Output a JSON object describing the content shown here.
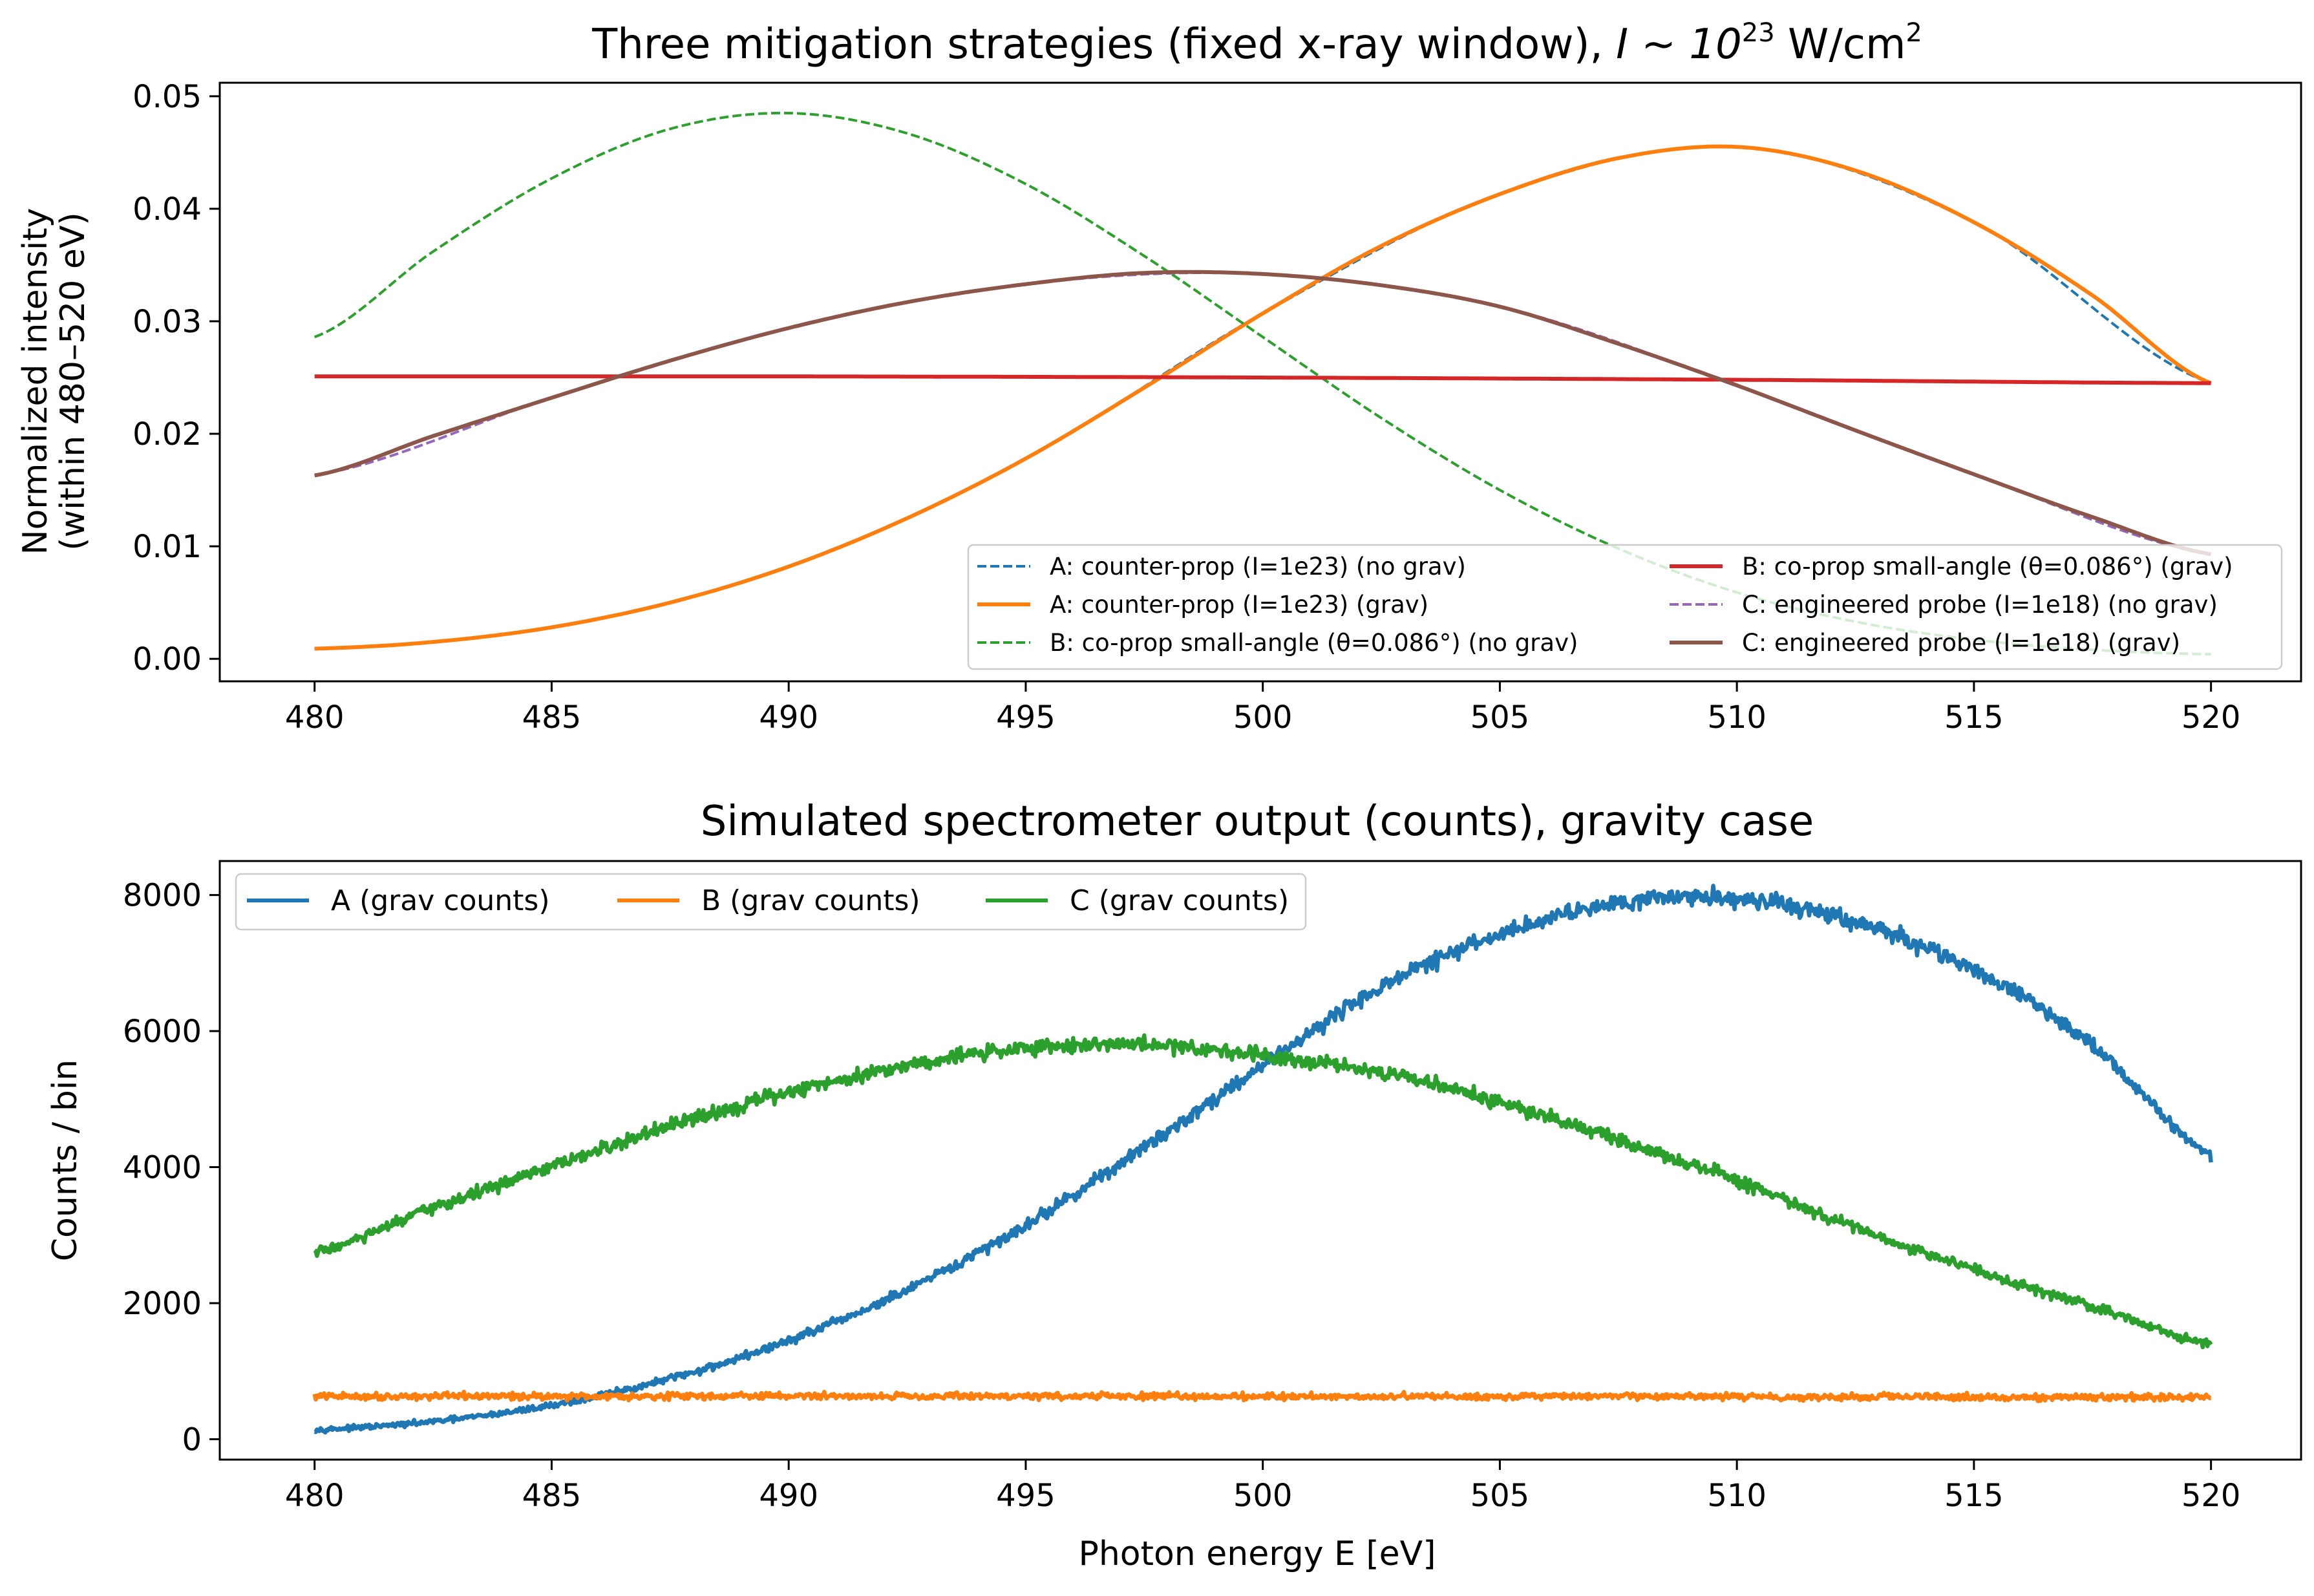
{
  "chart_data": [
    {
      "type": "line",
      "title": "Three mitigation strategies (fixed x-ray window), ",
      "title_math": "I ∼ 10",
      "title_sup": "23",
      "title_unit": " W/cm",
      "title_unit_sup": "2",
      "xlabel": "",
      "ylabel": "Normalized intensity",
      "ylabel2": "(within 480–520 eV)",
      "xlim": [
        478,
        521.9
      ],
      "ylim": [
        -0.002,
        0.0512
      ],
      "xticks": [
        480,
        485,
        490,
        495,
        500,
        505,
        510,
        515,
        520
      ],
      "xtick_labels": [
        "480",
        "485",
        "490",
        "495",
        "500",
        "505",
        "510",
        "515",
        "520"
      ],
      "yticks": [
        0.0,
        0.01,
        0.02,
        0.03,
        0.04,
        0.05
      ],
      "ytick_labels": [
        "0.00",
        "0.01",
        "0.02",
        "0.03",
        "0.04",
        "0.05"
      ],
      "legend_position": "lower-right",
      "series": [
        {
          "name": "A: counter-prop (I=1e23) (no grav)",
          "color": "#1f77b4",
          "style": "dashed",
          "x": [
            480,
            485,
            490,
            495,
            500,
            505,
            510,
            515,
            520
          ],
          "y": [
            0.0009,
            0.0028,
            0.0082,
            0.0178,
            0.0307,
            0.0413,
            0.0455,
            0.0388,
            0.0245
          ]
        },
        {
          "name": "A: counter-prop (I=1e23) (grav)",
          "color": "#ff7f0e",
          "style": "solid",
          "x": [
            480,
            482.5,
            485,
            487.5,
            490,
            492.5,
            495,
            497.5,
            500,
            502.5,
            505,
            507.5,
            510,
            512.5,
            515,
            517.5,
            520
          ],
          "y": [
            0.0009,
            0.0015,
            0.0028,
            0.005,
            0.0082,
            0.0125,
            0.0178,
            0.0241,
            0.0307,
            0.0367,
            0.0413,
            0.0445,
            0.0455,
            0.0434,
            0.0388,
            0.0323,
            0.0245
          ]
        },
        {
          "name": "B: co-prop small-angle (θ=0.086°) (no grav)",
          "color": "#2ca02c",
          "style": "dashed",
          "x": [
            480,
            482.5,
            485,
            487.5,
            490,
            492.5,
            495,
            497.5,
            500,
            502.5,
            505,
            507.5,
            510,
            512.5,
            515,
            517.5,
            520
          ],
          "y": [
            0.0286,
            0.0362,
            0.0427,
            0.0471,
            0.0485,
            0.0467,
            0.0422,
            0.0358,
            0.0286,
            0.0214,
            0.015,
            0.0098,
            0.0059,
            0.0033,
            0.0017,
            0.0008,
            0.0004
          ]
        },
        {
          "name": "B: co-prop small-angle (θ=0.086°) (grav)",
          "color": "#d62728",
          "style": "solid",
          "x": [
            480,
            490,
            500,
            510,
            520
          ],
          "y": [
            0.0251,
            0.0251,
            0.025,
            0.0248,
            0.0245
          ]
        },
        {
          "name": "C: engineered probe (I=1e18) (no grav)",
          "color": "#9467bd",
          "style": "dashed",
          "x": [
            480,
            485,
            490,
            495,
            500,
            505,
            510,
            515,
            520
          ],
          "y": [
            0.0163,
            0.0232,
            0.0294,
            0.0333,
            0.0342,
            0.0313,
            0.0243,
            0.0164,
            0.0093
          ]
        },
        {
          "name": "C: engineered probe (I=1e18) (grav)",
          "color": "#8c564b",
          "style": "solid",
          "x": [
            480,
            482.5,
            485,
            487.5,
            490,
            492.5,
            495,
            497.5,
            500,
            502.5,
            505,
            507.5,
            510,
            512.5,
            515,
            517.5,
            520
          ],
          "y": [
            0.0163,
            0.0198,
            0.0232,
            0.0265,
            0.0294,
            0.0317,
            0.0333,
            0.0343,
            0.0342,
            0.0332,
            0.0313,
            0.028,
            0.0243,
            0.0203,
            0.0164,
            0.0126,
            0.0093
          ]
        }
      ]
    },
    {
      "type": "line",
      "title": "Simulated spectrometer output (counts), gravity case",
      "xlabel": "Photon energy E [eV]",
      "ylabel": "Counts / bin",
      "xlim": [
        478,
        521.9
      ],
      "ylim": [
        -300,
        8500
      ],
      "xticks": [
        480,
        485,
        490,
        495,
        500,
        505,
        510,
        515,
        520
      ],
      "xtick_labels": [
        "480",
        "485",
        "490",
        "495",
        "500",
        "505",
        "510",
        "515",
        "520"
      ],
      "yticks": [
        0,
        2000,
        4000,
        6000,
        8000
      ],
      "ytick_labels": [
        "0",
        "2000",
        "4000",
        "6000",
        "8000"
      ],
      "legend_position": "top-left",
      "series": [
        {
          "name": "A (grav counts)",
          "color": "#1f77b4",
          "style": "solid",
          "x": [
            480,
            482.5,
            485,
            487.5,
            490,
            492.5,
            495,
            497.5,
            500,
            502.5,
            505,
            507.5,
            510,
            512.5,
            515,
            517.5,
            520
          ],
          "y": [
            140,
            260,
            500,
            890,
            1450,
            2190,
            3150,
            4290,
            5500,
            6650,
            7420,
            7900,
            7950,
            7600,
            6900,
            5800,
            4200
          ]
        },
        {
          "name": "B (grav counts)",
          "color": "#ff7f0e",
          "style": "solid",
          "x": [
            480,
            490,
            500,
            510,
            520
          ],
          "y": [
            630,
            635,
            630,
            625,
            615
          ]
        },
        {
          "name": "C (grav counts)",
          "color": "#2ca02c",
          "style": "solid",
          "x": [
            480,
            482.5,
            485,
            487.5,
            490,
            492.5,
            495,
            497.5,
            500,
            502.5,
            505,
            507.5,
            510,
            512.5,
            515,
            517.5,
            520
          ],
          "y": [
            2750,
            3400,
            4000,
            4600,
            5100,
            5500,
            5750,
            5800,
            5650,
            5400,
            4950,
            4400,
            3800,
            3100,
            2500,
            1950,
            1400
          ]
        }
      ]
    }
  ]
}
